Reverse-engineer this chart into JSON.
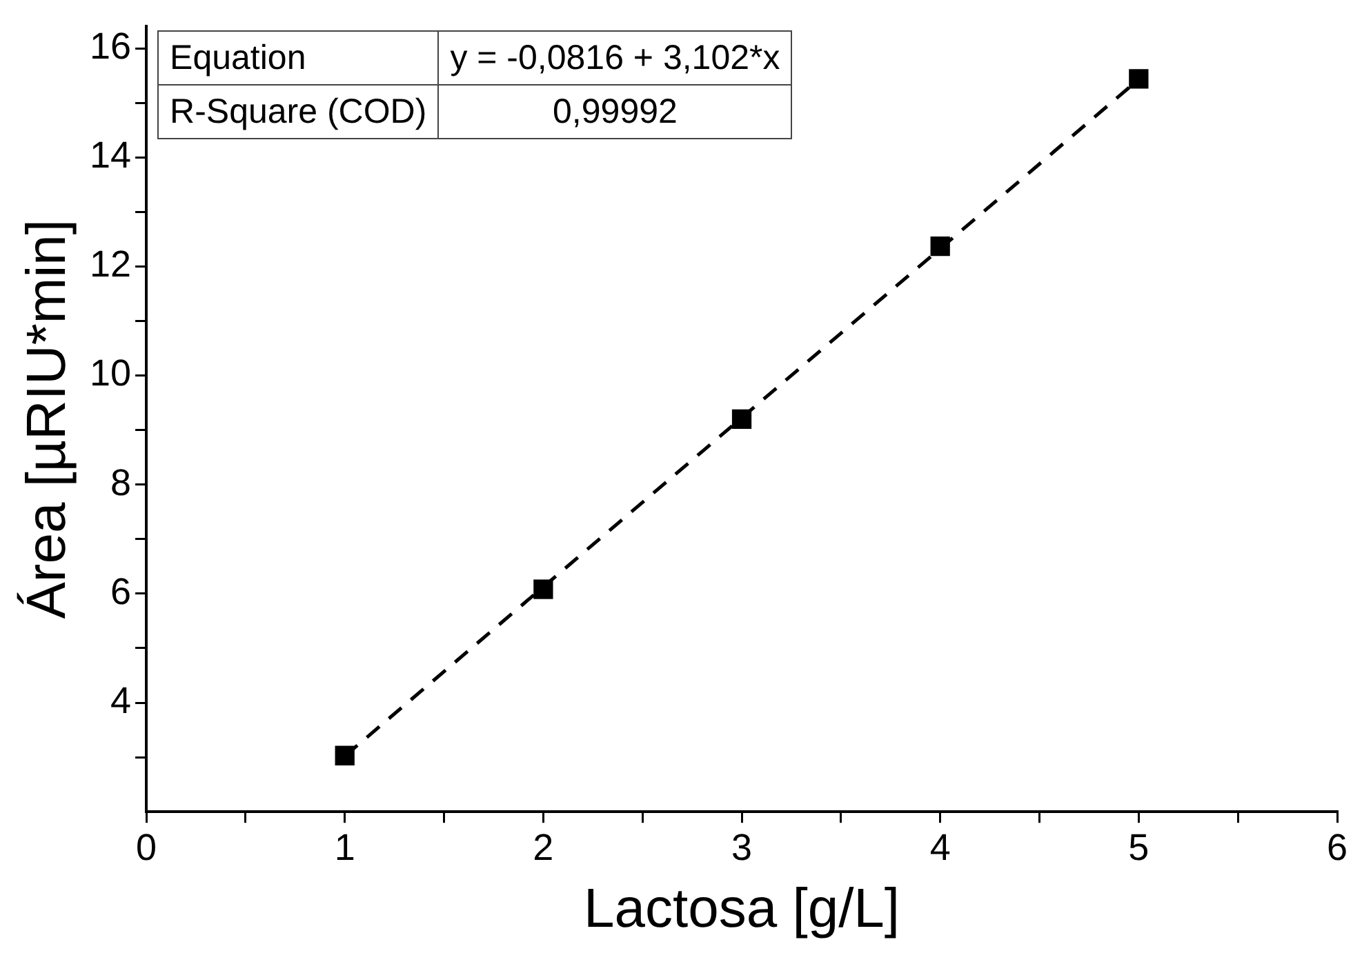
{
  "chart_data": {
    "type": "scatter",
    "xlabel": "Lactosa [g/L]",
    "ylabel": "Área [µRIU*min]",
    "x": [
      1,
      2,
      3,
      4,
      5
    ],
    "series": [
      {
        "type": "scatter",
        "color": "#000000",
        "marker": "square",
        "values": [
          3.03,
          6.08,
          9.2,
          12.37,
          15.44
        ]
      },
      {
        "type": "line",
        "color": "#000000",
        "line_style": "dashed",
        "marker": "none",
        "x": [
          1,
          5
        ],
        "values": [
          3.02,
          15.43
        ]
      }
    ],
    "xlim": [
      0,
      6
    ],
    "xticks": [
      0,
      {
        "value": 0.5,
        "label": null
      },
      1,
      {
        "value": 1.5,
        "label": null
      },
      2,
      {
        "value": 2.5,
        "label": null
      },
      3,
      {
        "value": 3.5,
        "label": null
      },
      4,
      {
        "value": 4.5,
        "label": null
      },
      5,
      {
        "value": 5.5,
        "label": null
      },
      6
    ],
    "ylim": [
      2,
      16.4
    ],
    "yticks": [
      {
        "value": 3,
        "label": null
      },
      4,
      {
        "value": 5,
        "label": null
      },
      6,
      {
        "value": 7,
        "label": null
      },
      8,
      {
        "value": 9,
        "label": null
      },
      10,
      {
        "value": 11,
        "label": null
      },
      12,
      {
        "value": 13,
        "label": null
      },
      14,
      {
        "value": 15,
        "label": null
      },
      16
    ],
    "grid": false,
    "legend": false,
    "annotations": [
      "Equation",
      "y = -0,0816 + 3,102*x",
      "R-Square (COD)",
      "0,99992"
    ]
  }
}
